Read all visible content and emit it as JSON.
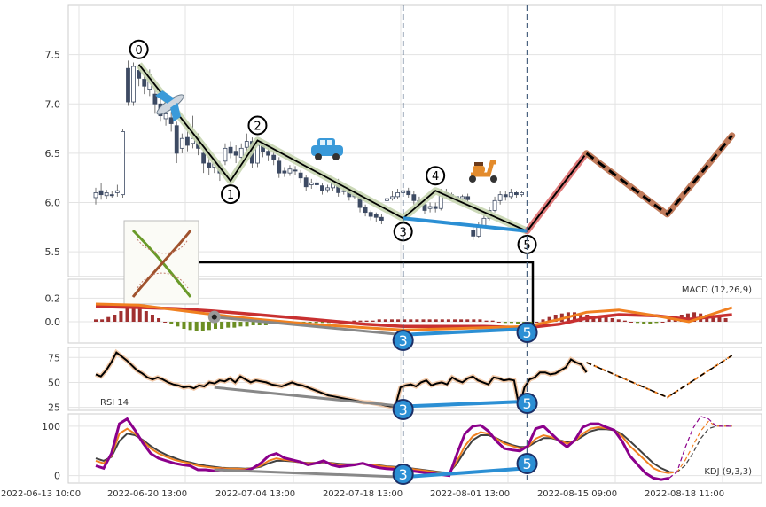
{
  "chart_data": {
    "type": "candlestick",
    "x_tick_labels": [
      "2022-06-13 10:00",
      "2022-06-20 13:00",
      "2022-07-04 13:00",
      "2022-07-18 13:00",
      "2022-08-01 13:00",
      "2022-08-15 09:00",
      "2022-08-18 11:00"
    ],
    "main": {
      "ylim": [
        5.25,
        8.0
      ],
      "yticks": [
        5.5,
        6.0,
        6.5,
        7.0,
        7.5
      ],
      "candles": [
        [
          6.05,
          6.1,
          6.15,
          5.98
        ],
        [
          6.12,
          6.08,
          6.2,
          6.03
        ],
        [
          6.07,
          6.1,
          6.13,
          6.04
        ],
        [
          6.08,
          6.07,
          6.12,
          6.05
        ],
        [
          6.1,
          6.12,
          6.18,
          6.06
        ],
        [
          6.08,
          6.72,
          6.75,
          6.05
        ],
        [
          7.36,
          7.02,
          7.44,
          6.98
        ],
        [
          7.02,
          7.38,
          7.42,
          6.98
        ],
        [
          7.34,
          7.26,
          7.4,
          7.18
        ],
        [
          7.25,
          7.18,
          7.3,
          7.1
        ],
        [
          7.15,
          7.3,
          7.35,
          7.08
        ],
        [
          7.1,
          7.0,
          7.15,
          6.9
        ],
        [
          7.0,
          6.88,
          7.05,
          6.82
        ],
        [
          6.85,
          6.9,
          6.98,
          6.78
        ],
        [
          6.86,
          6.8,
          6.92,
          6.72
        ],
        [
          6.78,
          6.5,
          6.82,
          6.4
        ],
        [
          6.55,
          6.65,
          6.7,
          6.5
        ],
        [
          6.66,
          6.58,
          6.72,
          6.52
        ],
        [
          6.6,
          6.65,
          6.88,
          6.55
        ],
        [
          6.66,
          6.55,
          6.7,
          6.48
        ],
        [
          6.5,
          6.4,
          6.55,
          6.3
        ],
        [
          6.4,
          6.35,
          6.46,
          6.28
        ],
        [
          6.36,
          6.4,
          6.45,
          6.3
        ],
        [
          6.38,
          6.3,
          6.42,
          6.22
        ],
        [
          6.42,
          6.55,
          6.6,
          6.38
        ],
        [
          6.56,
          6.5,
          6.62,
          6.45
        ],
        [
          6.52,
          6.48,
          6.58,
          6.4
        ],
        [
          6.46,
          6.55,
          6.6,
          6.42
        ],
        [
          6.56,
          6.62,
          6.7,
          6.52
        ],
        [
          6.62,
          6.4,
          6.66,
          6.35
        ],
        [
          6.4,
          6.58,
          6.62,
          6.36
        ],
        [
          6.58,
          6.52,
          6.62,
          6.46
        ],
        [
          6.52,
          6.48,
          6.56,
          6.42
        ],
        [
          6.48,
          6.44,
          6.52,
          6.38
        ],
        [
          6.42,
          6.3,
          6.46,
          6.25
        ],
        [
          6.32,
          6.3,
          6.36,
          6.26
        ],
        [
          6.3,
          6.34,
          6.38,
          6.27
        ],
        [
          6.33,
          6.32,
          6.37,
          6.28
        ],
        [
          6.3,
          6.25,
          6.33,
          6.2
        ],
        [
          6.25,
          6.16,
          6.28,
          6.12
        ],
        [
          6.18,
          6.2,
          6.24,
          6.14
        ],
        [
          6.2,
          6.18,
          6.24,
          6.15
        ],
        [
          6.17,
          6.12,
          6.2,
          6.08
        ],
        [
          6.13,
          6.15,
          6.18,
          6.1
        ],
        [
          6.15,
          6.2,
          6.24,
          6.12
        ],
        [
          6.2,
          6.1,
          6.24,
          6.06
        ],
        [
          6.12,
          6.12,
          6.16,
          6.08
        ],
        [
          6.12,
          6.06,
          6.15,
          6.02
        ],
        [
          6.06,
          6.08,
          6.1,
          6.04
        ],
        [
          6.06,
          5.95,
          6.08,
          5.9
        ],
        [
          5.95,
          5.9,
          5.98,
          5.86
        ],
        [
          5.9,
          5.86,
          5.92,
          5.82
        ],
        [
          5.88,
          5.85,
          5.9,
          5.8
        ],
        [
          5.85,
          5.82,
          5.88,
          5.78
        ],
        [
          6.02,
          6.04,
          6.06,
          6.0
        ],
        [
          6.04,
          6.06,
          6.12,
          6.02
        ],
        [
          6.06,
          6.1,
          6.14,
          6.04
        ],
        [
          6.1,
          6.12,
          6.15,
          6.08
        ],
        [
          6.12,
          6.08,
          6.15,
          6.05
        ],
        [
          6.08,
          6.02,
          6.12,
          5.98
        ],
        [
          6.02,
          5.98,
          6.06,
          5.94
        ],
        [
          5.98,
          5.92,
          6.02,
          5.88
        ],
        [
          5.94,
          5.96,
          6.0,
          5.9
        ],
        [
          5.96,
          5.94,
          6.0,
          5.9
        ],
        [
          5.94,
          6.1,
          6.14,
          5.92
        ],
        [
          6.1,
          6.08,
          6.14,
          6.04
        ],
        [
          6.08,
          6.06,
          6.1,
          6.03
        ],
        [
          6.06,
          6.04,
          6.08,
          6.01
        ],
        [
          6.04,
          6.06,
          6.08,
          6.02
        ],
        [
          6.06,
          6.03,
          6.09,
          6.0
        ],
        [
          5.72,
          5.66,
          5.78,
          5.62
        ],
        [
          5.66,
          5.76,
          5.8,
          5.64
        ],
        [
          5.76,
          5.84,
          5.9,
          5.74
        ],
        [
          5.84,
          5.92,
          5.96,
          5.82
        ],
        [
          5.92,
          6.02,
          6.06,
          5.9
        ],
        [
          6.02,
          6.08,
          6.12,
          5.98
        ],
        [
          6.08,
          6.06,
          6.12,
          6.02
        ],
        [
          6.06,
          6.1,
          6.14,
          6.04
        ],
        [
          6.1,
          6.08,
          6.12,
          6.05
        ],
        [
          6.08,
          6.1,
          6.12,
          6.06
        ]
      ],
      "wave_points": [
        {
          "label": "0",
          "x": 8,
          "y": 7.4
        },
        {
          "label": "1",
          "x": 25,
          "y": 6.22
        },
        {
          "label": "2",
          "x": 30,
          "y": 6.63
        },
        {
          "label": "3",
          "x": 57,
          "y": 5.84
        },
        {
          "label": "4",
          "x": 63,
          "y": 6.12
        },
        {
          "label": "5",
          "x": 80,
          "y": 5.71
        },
        {
          "label": "",
          "x": 91,
          "y": 6.5
        }
      ],
      "projection": [
        {
          "x": 80,
          "y": 5.71
        },
        {
          "x": 91,
          "y": 6.5
        },
        {
          "x": 106,
          "y": 5.88
        },
        {
          "x": 118,
          "y": 6.68
        }
      ],
      "divergence": [
        {
          "x": 57,
          "y": 5.84
        },
        {
          "x": 80,
          "y": 5.71
        }
      ],
      "vlines_x": [
        57,
        80
      ]
    },
    "macd": {
      "label": "MACD (12,26,9)",
      "ylim": [
        -0.18,
        0.36
      ],
      "yticks": [
        0.2,
        0.0
      ],
      "hist": [
        0.02,
        0.02,
        0.04,
        0.06,
        0.09,
        0.12,
        0.13,
        0.12,
        0.09,
        0.06,
        0.03,
        0.0,
        -0.02,
        -0.04,
        -0.06,
        -0.07,
        -0.08,
        -0.08,
        -0.07,
        -0.06,
        -0.06,
        -0.05,
        -0.05,
        -0.04,
        -0.04,
        -0.03,
        -0.03,
        -0.03,
        -0.02,
        -0.02,
        -0.02,
        -0.02,
        -0.02,
        -0.01,
        -0.01,
        -0.01,
        -0.01,
        -0.01,
        0.0,
        0.0,
        0.0,
        0.01,
        0.01,
        0.01,
        0.01,
        0.02,
        0.02,
        0.02,
        0.02,
        0.02,
        0.02,
        0.02,
        0.02,
        0.02,
        0.02,
        0.02,
        0.02,
        0.02,
        0.02,
        0.02,
        0.02,
        0.02,
        0.01,
        0.01,
        0.0,
        -0.01,
        -0.01,
        -0.02,
        -0.02,
        -0.01,
        0.0,
        0.02,
        0.04,
        0.06,
        0.07,
        0.08,
        0.08,
        0.07,
        0.06,
        0.05,
        0.05,
        0.04,
        0.03,
        0.02,
        0.01,
        0.0,
        -0.01,
        -0.02,
        -0.02,
        -0.01,
        0.0,
        0.02,
        0.04,
        0.06,
        0.07,
        0.08,
        0.07,
        0.06,
        0.05,
        0.04,
        0.03
      ],
      "dif": [
        {
          "x": 0,
          "y": 0.15
        },
        {
          "x": 8,
          "y": 0.14
        },
        {
          "x": 15,
          "y": 0.1
        },
        {
          "x": 22,
          "y": 0.06
        },
        {
          "x": 30,
          "y": 0.02
        },
        {
          "x": 40,
          "y": -0.02
        },
        {
          "x": 50,
          "y": -0.05
        },
        {
          "x": 57,
          "y": -0.07
        },
        {
          "x": 65,
          "y": -0.06
        },
        {
          "x": 72,
          "y": -0.05
        },
        {
          "x": 80,
          "y": -0.04
        },
        {
          "x": 86,
          "y": 0.02
        },
        {
          "x": 91,
          "y": 0.08
        },
        {
          "x": 97,
          "y": 0.1
        },
        {
          "x": 104,
          "y": 0.05
        },
        {
          "x": 110,
          "y": 0.0
        },
        {
          "x": 118,
          "y": 0.12
        }
      ],
      "dea": [
        {
          "x": 0,
          "y": 0.13
        },
        {
          "x": 8,
          "y": 0.12
        },
        {
          "x": 15,
          "y": 0.11
        },
        {
          "x": 22,
          "y": 0.09
        },
        {
          "x": 30,
          "y": 0.06
        },
        {
          "x": 40,
          "y": 0.02
        },
        {
          "x": 50,
          "y": -0.02
        },
        {
          "x": 57,
          "y": -0.04
        },
        {
          "x": 65,
          "y": -0.04
        },
        {
          "x": 72,
          "y": -0.04
        },
        {
          "x": 80,
          "y": -0.05
        },
        {
          "x": 86,
          "y": -0.02
        },
        {
          "x": 91,
          "y": 0.03
        },
        {
          "x": 97,
          "y": 0.06
        },
        {
          "x": 104,
          "y": 0.05
        },
        {
          "x": 110,
          "y": 0.02
        },
        {
          "x": 118,
          "y": 0.06
        }
      ],
      "divergence": [
        {
          "x": 57,
          "y": -0.11
        },
        {
          "x": 80,
          "y": -0.06
        }
      ],
      "grey_segment": [
        {
          "x": 22,
          "y": 0.04
        },
        {
          "x": 57,
          "y": -0.11
        }
      ]
    },
    "rsi": {
      "label": "RSI 14",
      "ylim": [
        22,
        85
      ],
      "yticks": [
        75,
        50,
        25
      ],
      "values": [
        58,
        56,
        62,
        70,
        80,
        76,
        72,
        67,
        62,
        59,
        55,
        53,
        55,
        53,
        50,
        48,
        47,
        45,
        46,
        44,
        47,
        46,
        50,
        49,
        52,
        51,
        54,
        50,
        56,
        53,
        50,
        52,
        51,
        50,
        48,
        47,
        46,
        48,
        50,
        48,
        47,
        45,
        43,
        41,
        39,
        37,
        36,
        35,
        34,
        33,
        32,
        31,
        30,
        30,
        29,
        28,
        27,
        26,
        26,
        45,
        47,
        48,
        46,
        50,
        52,
        47,
        49,
        50,
        48,
        55,
        52,
        50,
        54,
        56,
        52,
        50,
        48,
        55,
        54,
        52,
        53,
        52,
        25,
        45,
        53,
        55,
        60,
        60,
        58,
        59,
        62,
        65,
        73,
        70,
        68,
        60,
        58,
        55,
        52,
        49,
        46,
        44,
        42,
        40,
        38,
        37,
        42,
        48,
        54,
        60,
        66,
        70,
        74,
        77
      ],
      "divergence": [
        {
          "x": 57,
          "y": 26
        },
        {
          "x": 80,
          "y": 31
        }
      ],
      "grey_segment": [
        {
          "x": 22,
          "y": 45
        },
        {
          "x": 57,
          "y": 26
        }
      ]
    },
    "kdj": {
      "label": "KDJ (9,3,3)",
      "ylim": [
        -15,
        125
      ],
      "yticks": [
        100,
        0
      ],
      "k": [
        30,
        25,
        40,
        85,
        95,
        85,
        70,
        55,
        45,
        38,
        32,
        28,
        25,
        20,
        18,
        16,
        15,
        14,
        14,
        13,
        15,
        20,
        30,
        35,
        32,
        30,
        27,
        25,
        26,
        28,
        25,
        22,
        22,
        23,
        24,
        22,
        20,
        18,
        17,
        16,
        14,
        12,
        10,
        8,
        6,
        5,
        30,
        60,
        80,
        88,
        85,
        75,
        65,
        60,
        55,
        58,
        75,
        82,
        78,
        72,
        65,
        70,
        85,
        95,
        98,
        96,
        92,
        80,
        60,
        45,
        30,
        15,
        8,
        5,
        7,
        30,
        60,
        90,
        110,
        100,
        100,
        100
      ],
      "d": [
        35,
        30,
        38,
        70,
        85,
        82,
        72,
        60,
        50,
        42,
        36,
        30,
        27,
        23,
        20,
        18,
        16,
        15,
        15,
        14,
        15,
        18,
        25,
        30,
        30,
        29,
        27,
        26,
        26,
        27,
        26,
        24,
        23,
        23,
        24,
        22,
        21,
        19,
        18,
        17,
        15,
        13,
        11,
        9,
        7,
        6,
        25,
        50,
        72,
        82,
        82,
        76,
        68,
        62,
        58,
        58,
        68,
        76,
        76,
        72,
        68,
        70,
        80,
        90,
        94,
        94,
        92,
        84,
        70,
        55,
        40,
        25,
        15,
        8,
        7,
        20,
        45,
        75,
        95,
        100,
        100,
        100
      ],
      "j": [
        20,
        15,
        45,
        105,
        115,
        92,
        66,
        45,
        35,
        30,
        25,
        22,
        20,
        12,
        12,
        10,
        12,
        10,
        10,
        10,
        15,
        25,
        40,
        45,
        36,
        32,
        28,
        22,
        25,
        30,
        22,
        18,
        20,
        22,
        25,
        20,
        16,
        14,
        13,
        12,
        10,
        8,
        6,
        4,
        2,
        0,
        45,
        85,
        100,
        102,
        90,
        70,
        55,
        52,
        50,
        60,
        95,
        100,
        85,
        70,
        58,
        72,
        98,
        105,
        105,
        98,
        92,
        70,
        40,
        22,
        5,
        -5,
        -8,
        -5,
        8,
        55,
        95,
        120,
        115,
        100,
        100,
        100
      ],
      "divergence": [
        {
          "x": 57,
          "y": -3
        },
        {
          "x": 80,
          "y": 15
        }
      ],
      "grey_segment": [
        {
          "x": 22,
          "y": 12
        },
        {
          "x": 57,
          "y": -3
        }
      ]
    }
  },
  "icons": {
    "airplane": "airplane-emoji",
    "car": "car-emoji",
    "scooter": "scooter-emoji",
    "inset": "scissors-pattern-thumbnail"
  },
  "colors": {
    "up": "#ffffff",
    "down": "#3d4a63",
    "wave": "#000000",
    "wave_halo": "#c7d5b0",
    "divergence": "#2b8fd4",
    "projection_halo": "#c07a5a",
    "proj_first_halo": "#e07b7b",
    "macd_dif": "#f08020",
    "macd_dea": "#c83030",
    "hist_pos": "#a03030",
    "hist_neg": "#6b8e23",
    "kdj_k": "#f08020",
    "kdj_d": "#404040",
    "kdj_j": "#8b008b"
  }
}
